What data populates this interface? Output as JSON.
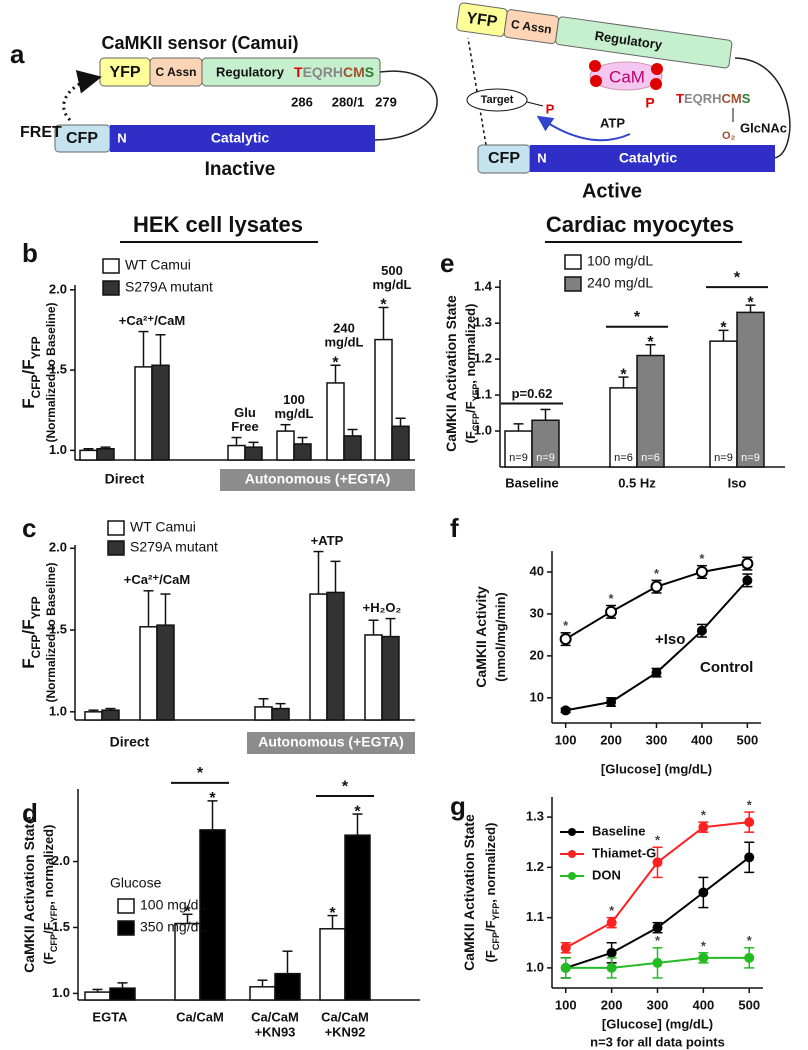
{
  "diagram": {
    "panel": "a",
    "inactive": {
      "title": "CaMKII sensor (Camui)",
      "yfp": "YFP",
      "c_assn": "C Assn",
      "regulatory": "Regulatory",
      "motif": [
        "T",
        "EQRH",
        "CM",
        "S"
      ],
      "sites": [
        "286",
        "280/1",
        "279"
      ],
      "fret": "FRET",
      "cfp": "CFP",
      "n": "N",
      "catalytic": "Catalytic",
      "state": "Inactive"
    },
    "active": {
      "yfp": "YFP",
      "c_assn": "C Assn",
      "regulatory": "Regulatory",
      "cam": "CaM",
      "p": "P",
      "motif": [
        "T",
        "EQRH",
        "CM",
        "S"
      ],
      "o2": "O₂",
      "glcnac": "GlcNAc",
      "target": "Target",
      "target_p": "P",
      "atp": "ATP",
      "cfp": "CFP",
      "n": "N",
      "catalytic": "Catalytic",
      "state": "Active"
    }
  },
  "chart_data": [
    {
      "panel": "b",
      "type": "bar",
      "title": "HEK cell lysates",
      "ylabel": [
        [
          "F",
          {
            "sub": "CFP"
          },
          "/F",
          {
            "sub": "YFP"
          }
        ],
        [
          "(Normalized to Baseline)"
        ]
      ],
      "ylim": [
        0.94,
        2.03
      ],
      "yticks": [
        {
          "value": 1,
          "label": "1.0"
        },
        1.5,
        {
          "value": 2,
          "label": "2.0"
        }
      ],
      "sections": [
        {
          "label": "Direct",
          "boxed": false,
          "categories": [
            null,
            "+Ca²⁺/CaM"
          ]
        },
        {
          "label": "Autonomous (+EGTA)",
          "boxed": true,
          "categories": [
            [
              "Glu",
              "Free"
            ],
            [
              "100",
              "mg/dL"
            ],
            [
              "240",
              "mg/dL"
            ],
            [
              "500",
              "mg/dL"
            ]
          ]
        }
      ],
      "series": [
        {
          "name": "WT Camui",
          "color": "#ffffff",
          "values": [
            1.0,
            1.52,
            1.03,
            1.12,
            1.42,
            1.69
          ],
          "errors": [
            0.01,
            0.22,
            0.05,
            0.04,
            0.11,
            0.2
          ],
          "stars": [
            null,
            null,
            null,
            null,
            "*",
            "*"
          ]
        },
        {
          "name": "S279A mutant",
          "color": "#333333",
          "values": [
            1.01,
            1.53,
            1.02,
            1.04,
            1.09,
            1.15
          ],
          "errors": [
            0.01,
            0.19,
            0.03,
            0.04,
            0.04,
            0.05
          ],
          "stars": [
            null,
            null,
            null,
            null,
            null,
            null
          ]
        }
      ]
    },
    {
      "panel": "c",
      "type": "bar",
      "ylabel": [
        [
          "F",
          {
            "sub": "CFP"
          },
          "/F",
          {
            "sub": "YFP"
          }
        ],
        [
          "(Normalized to Baseline)"
        ]
      ],
      "ylim": [
        0.95,
        2.02
      ],
      "yticks": [
        {
          "value": 1,
          "label": "1.0"
        },
        1.5,
        {
          "value": 2,
          "label": "2.0"
        }
      ],
      "sections": [
        {
          "label": "Direct",
          "boxed": false,
          "categories": [
            null,
            "+Ca²⁺/CaM"
          ]
        },
        {
          "label": "Autonomous (+EGTA)",
          "boxed": true,
          "categories": [
            null,
            "+ATP",
            "+H₂O₂"
          ]
        }
      ],
      "series": [
        {
          "name": "WT Camui",
          "color": "#ffffff",
          "values": [
            1.0,
            1.52,
            1.03,
            1.72,
            1.47
          ],
          "errors": [
            0.01,
            0.22,
            0.05,
            0.26,
            0.09
          ]
        },
        {
          "name": "S279A mutant",
          "color": "#333333",
          "values": [
            1.01,
            1.53,
            1.02,
            1.73,
            1.46
          ],
          "errors": [
            0.01,
            0.19,
            0.03,
            0.19,
            0.11
          ]
        }
      ]
    },
    {
      "panel": "d",
      "type": "bar",
      "ylabel": [
        [
          "CaMKII Activation State"
        ],
        [
          "(F",
          {
            "sub": "CFP"
          },
          "/F",
          {
            "sub": "YFP"
          },
          ", normalized)"
        ]
      ],
      "ylim": [
        0.95,
        2.55
      ],
      "yticks": [
        {
          "value": 1,
          "label": "1.0"
        },
        1.5,
        {
          "value": 2,
          "label": "2.0"
        }
      ],
      "categories": [
        "EGTA",
        "Ca/CaM",
        [
          "Ca/CaM",
          "+KN93"
        ],
        [
          "Ca/CaM",
          "+KN92"
        ]
      ],
      "legend_title": "Glucose",
      "series": [
        {
          "name": "100 mg/dL",
          "color": "#ffffff",
          "values": [
            1.01,
            1.53,
            1.05,
            1.49
          ],
          "errors": [
            0.02,
            0.07,
            0.05,
            0.1
          ],
          "stars": [
            null,
            "*",
            null,
            "*"
          ]
        },
        {
          "name": "350 mg/dL",
          "color": "#000000",
          "values": [
            1.04,
            2.24,
            1.15,
            2.2
          ],
          "errors": [
            0.04,
            0.22,
            0.17,
            0.16
          ],
          "stars": [
            null,
            "*",
            null,
            "*"
          ]
        }
      ],
      "brackets": [
        null,
        "*",
        null,
        "*"
      ]
    },
    {
      "panel": "e",
      "type": "bar",
      "title": "Cardiac myocytes",
      "ylabel": [
        [
          "CaMKII Activation State"
        ],
        [
          "(F",
          {
            "sub": "CFP"
          },
          "/F",
          {
            "sub": "YFP"
          },
          ", normalized)"
        ]
      ],
      "ylim": [
        0.9,
        1.42
      ],
      "yticks": [
        {
          "value": 1,
          "label": "1.0"
        },
        1.1,
        1.2,
        1.3,
        1.4
      ],
      "categories": [
        "Baseline",
        "0.5 Hz",
        "Iso"
      ],
      "series": [
        {
          "name": "100 mg/dL",
          "color": "#ffffff",
          "values": [
            1.0,
            1.12,
            1.25
          ],
          "errors": [
            0.02,
            0.03,
            0.03
          ],
          "stars": [
            null,
            "*",
            "*"
          ],
          "n_labels": [
            "n=9",
            "n=6",
            "n=9"
          ]
        },
        {
          "name": "240 mg/dL",
          "color": "#808080",
          "values": [
            1.03,
            1.21,
            1.33
          ],
          "errors": [
            0.03,
            0.03,
            0.02
          ],
          "stars": [
            null,
            "*",
            "*"
          ],
          "n_labels": [
            "n=9",
            "n=6",
            "n=9"
          ]
        }
      ],
      "brackets": [
        "p=0.62",
        "*",
        "*"
      ]
    },
    {
      "panel": "f",
      "type": "line",
      "ylabel": [
        [
          "CaMKII Activity"
        ],
        [
          "(nmol/mg/min)"
        ]
      ],
      "xlabel": "[Glucose] (mg/dL)",
      "x": [
        100,
        200,
        300,
        400,
        500
      ],
      "xlim": [
        70,
        530
      ],
      "xticks": [
        100,
        200,
        300,
        400,
        500
      ],
      "ylim": [
        4,
        45
      ],
      "yticks": [
        10,
        20,
        30,
        40
      ],
      "series": [
        {
          "name": "+Iso",
          "color": "#000000",
          "marker": "open",
          "values": [
            24,
            30.5,
            36.5,
            40,
            42
          ],
          "errors": [
            1.5,
            1.5,
            1.5,
            1.5,
            1.5
          ],
          "stars": [
            "*",
            "*",
            "*",
            "*",
            null
          ]
        },
        {
          "name": "Control",
          "color": "#000000",
          "marker": "filled",
          "values": [
            7,
            9,
            16,
            26,
            38
          ],
          "errors": [
            0.5,
            1,
            1,
            1.5,
            1.5
          ]
        }
      ]
    },
    {
      "panel": "g",
      "type": "line",
      "legend": true,
      "ylabel": [
        [
          "CaMKII Activation State"
        ],
        [
          "(F",
          {
            "sub": "CFP"
          },
          "/F",
          {
            "sub": "YFP"
          },
          ", normalized)"
        ]
      ],
      "xlabel": "[Glucose] (mg/dL)",
      "note": "n=3 for all data points",
      "x": [
        100,
        200,
        300,
        400,
        500
      ],
      "xlim": [
        70,
        530
      ],
      "xticks": [
        100,
        200,
        300,
        400,
        500
      ],
      "ylim": [
        0.96,
        1.34
      ],
      "yticks": [
        {
          "value": 1,
          "label": "1.0"
        },
        1.1,
        1.2,
        1.3
      ],
      "series": [
        {
          "name": "Baseline",
          "color": "#000000",
          "marker": "filled",
          "values": [
            1.0,
            1.03,
            1.08,
            1.15,
            1.22
          ],
          "errors": [
            0.02,
            0.02,
            0.01,
            0.03,
            0.03
          ]
        },
        {
          "name": "Thiamet-G",
          "color": "#ff2020",
          "marker": "filled",
          "values": [
            1.04,
            1.09,
            1.21,
            1.28,
            1.29
          ],
          "errors": [
            0.01,
            0.01,
            0.03,
            0.01,
            0.02
          ],
          "stars": [
            null,
            "*",
            "*",
            "*",
            "*"
          ]
        },
        {
          "name": "DON",
          "color": "#22bb22",
          "marker": "filled",
          "values": [
            1.0,
            1.0,
            1.01,
            1.02,
            1.02
          ],
          "errors": [
            0.02,
            0.02,
            0.03,
            0.01,
            0.02
          ],
          "stars": [
            null,
            null,
            "*",
            "*",
            "*"
          ]
        }
      ]
    }
  ]
}
